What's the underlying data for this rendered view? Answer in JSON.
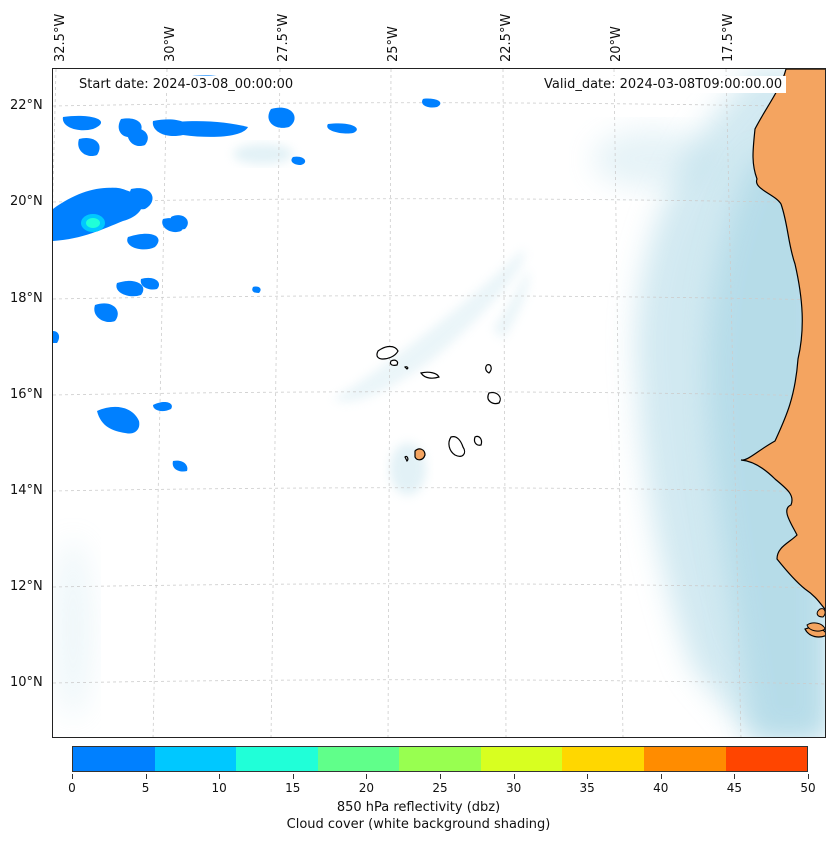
{
  "map": {
    "start_date": "Start date: 2024-03-08_00:00:00",
    "valid_date": "Valid_date: 2024-03-08T09:00:00.00",
    "longitude_labels": [
      "32.5°W",
      "30°W",
      "27.5°W",
      "25°W",
      "22.5°W",
      "20°W",
      "17.5°W"
    ],
    "latitude_labels": [
      "22°N",
      "20°N",
      "18°N",
      "16°N",
      "14°N",
      "12°N",
      "10°N"
    ],
    "colors": {
      "land": "#f4a460",
      "cloud": "#add8e6",
      "coastline": "#000000",
      "grid": "#cccccc"
    }
  },
  "colorbar": {
    "ticks": [
      "0",
      "5",
      "10",
      "15",
      "20",
      "25",
      "30",
      "35",
      "40",
      "45",
      "50"
    ],
    "colors": [
      "#0080ff",
      "#00c8ff",
      "#20ffd8",
      "#60ff8a",
      "#98ff50",
      "#d8ff20",
      "#ffd700",
      "#ff8c00",
      "#ff4500"
    ],
    "label_line1": "850 hPa reflectivity (dbz)",
    "label_line2": "Cloud cover (white background shading)"
  }
}
